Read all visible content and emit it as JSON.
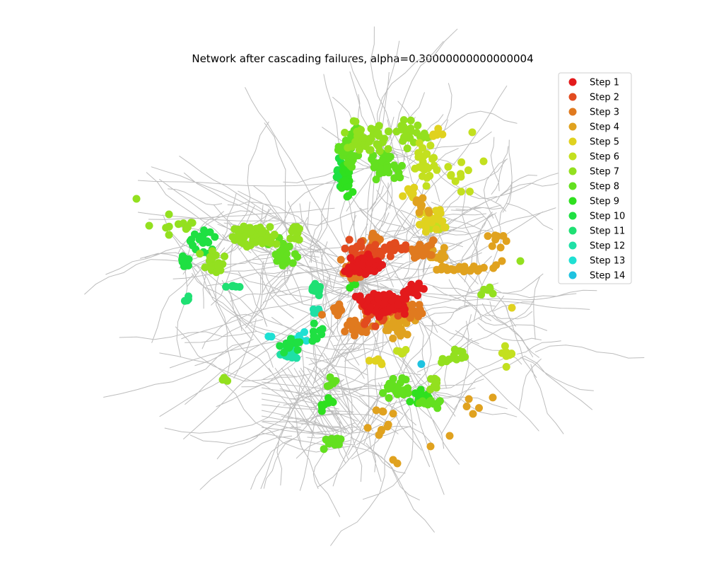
{
  "chart_data": {
    "type": "scatter",
    "title": "Network after cascading failures, alpha=0.30000000000000004",
    "xlabel": "",
    "ylabel": "",
    "axes_visible": false,
    "grid": false,
    "legend_placement": "top-right",
    "edge_color": "#bdbdbd",
    "series": [
      {
        "name": "Step 1",
        "color": "#e31a1c"
      },
      {
        "name": "Step 2",
        "color": "#e24b1f"
      },
      {
        "name": "Step 3",
        "color": "#e07a1f"
      },
      {
        "name": "Step 4",
        "color": "#e0a21f"
      },
      {
        "name": "Step 5",
        "color": "#e0d21f"
      },
      {
        "name": "Step 6",
        "color": "#c3e01f"
      },
      {
        "name": "Step 7",
        "color": "#93e01f"
      },
      {
        "name": "Step 8",
        "color": "#63e01f"
      },
      {
        "name": "Step 9",
        "color": "#2fe01f"
      },
      {
        "name": "Step 10",
        "color": "#1fe042"
      },
      {
        "name": "Step 11",
        "color": "#1fe073"
      },
      {
        "name": "Step 12",
        "color": "#1fe0a6"
      },
      {
        "name": "Step 13",
        "color": "#1fe0d3"
      },
      {
        "name": "Step 14",
        "color": "#1fc3e0"
      }
    ]
  }
}
